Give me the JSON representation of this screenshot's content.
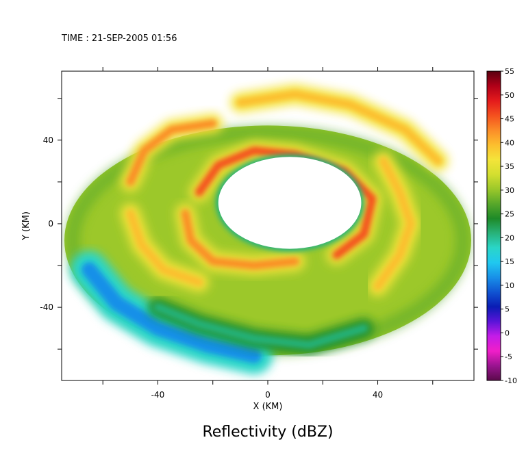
{
  "header": {
    "time_label": "TIME : 21-SEP-2005 01:56"
  },
  "chart_data": {
    "type": "heatmap",
    "title": "Reflectivity (dBZ)",
    "xlabel": "X (KM)",
    "ylabel": "Y (KM)",
    "xlim": [
      -75,
      75
    ],
    "ylim": [
      -75,
      73
    ],
    "x_ticks": [
      -40,
      0,
      40
    ],
    "y_ticks": [
      40,
      0,
      -40
    ],
    "colorbar": {
      "label_values": [
        55,
        50,
        45,
        40,
        35,
        30,
        25,
        20,
        15,
        10,
        5,
        0,
        -5,
        -10
      ],
      "colors": [
        "#5a0010",
        "#b00018",
        "#e41a1c",
        "#f4501e",
        "#fb8c28",
        "#fcbe2e",
        "#f4e43a",
        "#d4df30",
        "#9cc82a",
        "#58a82a",
        "#1e8a28",
        "#28b27a",
        "#2ad6c8",
        "#20c8f0",
        "#1890e8",
        "#1054d2",
        "#0a1cb4",
        "#5a14d8",
        "#c41ce8",
        "#f01ec8",
        "#9a1490",
        "#5a0a4a"
      ]
    },
    "eye": {
      "center": [
        8,
        10
      ],
      "radius_x": 26,
      "radius_y": 22
    },
    "domain": {
      "center": [
        0,
        -8
      ],
      "radius_x": 74,
      "radius_y": 55
    },
    "rainbands": [
      {
        "name": "inner eyewall",
        "dbz": 45,
        "points": [
          [
            -25,
            15
          ],
          [
            -18,
            28
          ],
          [
            -5,
            35
          ],
          [
            10,
            33
          ],
          [
            28,
            25
          ],
          [
            38,
            12
          ],
          [
            35,
            -5
          ],
          [
            25,
            -15
          ]
        ]
      },
      {
        "name": "inner band west",
        "dbz": 42,
        "points": [
          [
            -30,
            5
          ],
          [
            -28,
            -8
          ],
          [
            -20,
            -18
          ],
          [
            -5,
            -20
          ],
          [
            10,
            -18
          ]
        ]
      },
      {
        "name": "northwest band",
        "dbz": 43,
        "points": [
          [
            -50,
            20
          ],
          [
            -45,
            35
          ],
          [
            -35,
            45
          ],
          [
            -20,
            48
          ]
        ]
      },
      {
        "name": "southwest band",
        "dbz": 40,
        "points": [
          [
            -50,
            5
          ],
          [
            -46,
            -10
          ],
          [
            -38,
            -22
          ],
          [
            -25,
            -28
          ]
        ]
      },
      {
        "name": "east band",
        "dbz": 40,
        "points": [
          [
            42,
            30
          ],
          [
            48,
            15
          ],
          [
            52,
            0
          ],
          [
            48,
            -15
          ],
          [
            40,
            -30
          ]
        ]
      },
      {
        "name": "outer north band",
        "dbz": 38,
        "points": [
          [
            -10,
            58
          ],
          [
            10,
            62
          ],
          [
            30,
            57
          ],
          [
            50,
            45
          ],
          [
            62,
            30
          ]
        ]
      },
      {
        "name": "low south band",
        "dbz": 20,
        "points": [
          [
            -40,
            -40
          ],
          [
            -25,
            -48
          ],
          [
            -5,
            -55
          ],
          [
            15,
            -58
          ],
          [
            35,
            -50
          ]
        ]
      }
    ],
    "weak_region": {
      "name": "southwest weak echo",
      "dbz": 12,
      "points": [
        [
          -65,
          -22
        ],
        [
          -55,
          -38
        ],
        [
          -40,
          -50
        ],
        [
          -22,
          -58
        ],
        [
          -5,
          -63
        ]
      ]
    }
  }
}
